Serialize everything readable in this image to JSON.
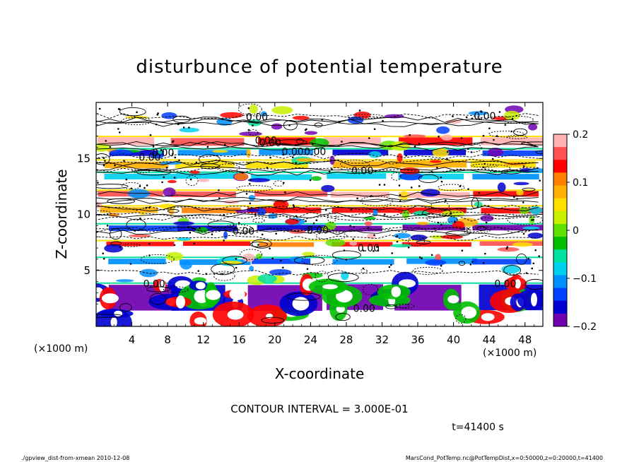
{
  "chart_data": {
    "type": "heatmap",
    "title": "disturbunce of potential temperature",
    "xlabel": "X-coordinate",
    "ylabel": "Z-coordinate",
    "x_unit": "(×1000 m)",
    "y_unit": "(×1000 m)",
    "xlim": [
      0,
      50
    ],
    "ylim": [
      0,
      20
    ],
    "xticks": [
      4,
      8,
      12,
      16,
      20,
      24,
      28,
      32,
      36,
      40,
      44,
      48
    ],
    "yticks": [
      5,
      10,
      15
    ],
    "colorbar": {
      "range": [
        -0.2,
        0.2
      ],
      "ticks": [
        "0.2",
        "0.1",
        "0",
        "−0.1",
        "−0.2"
      ],
      "colors": [
        "#ffb0b0",
        "#ff5050",
        "#ff0000",
        "#ff8000",
        "#ffb000",
        "#ffe000",
        "#c8f000",
        "#60e000",
        "#00c000",
        "#00e0a0",
        "#00d0f0",
        "#0090ff",
        "#0040ff",
        "#0000d0",
        "#7000b0"
      ]
    },
    "contour_interval_label": "CONTOUR INTERVAL = 3.000E-01",
    "time_label": "t=41400 s",
    "contour_labels": [
      "0.00",
      "0.00",
      "0.00",
      "0.00",
      "0.00",
      "0.00",
      "0.00",
      "0.00",
      "0.00",
      "0.00",
      "0.00",
      "0.00",
      "0.00",
      "0.00",
      "0.00"
    ],
    "bands": [
      {
        "z0": 16.2,
        "z1": 16.9,
        "value": 0.15
      },
      {
        "z0": 15.3,
        "z1": 15.8,
        "value": -0.14
      },
      {
        "z0": 14.2,
        "z1": 14.8,
        "value": 0.08
      },
      {
        "z0": 13.2,
        "z1": 13.7,
        "value": -0.1
      },
      {
        "z0": 11.6,
        "z1": 12.1,
        "value": 0.16
      },
      {
        "z0": 10.2,
        "z1": 10.7,
        "value": 0.12
      },
      {
        "z0": 8.6,
        "z1": 9.1,
        "value": -0.15
      },
      {
        "z0": 7.2,
        "z1": 7.6,
        "value": 0.14
      },
      {
        "z0": 5.6,
        "z1": 6.1,
        "value": -0.12
      },
      {
        "z0": 1.5,
        "z1": 3.8,
        "value": -0.18
      }
    ]
  },
  "footer": {
    "left": "./gpview_dist-from-xmean  2010-12-08",
    "right": "MarsCond_PotTemp.nc@PotTempDist,x=0:50000,z=0:20000,t=41400"
  }
}
